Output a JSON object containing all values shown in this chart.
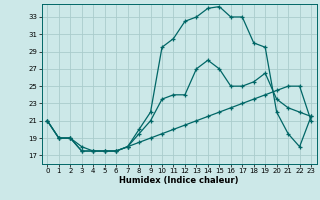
{
  "xlabel": "Humidex (Indice chaleur)",
  "ylabel": "",
  "bg_color": "#cce8e8",
  "grid_color": "#aacccc",
  "line_color": "#006666",
  "xlim": [
    -0.5,
    23.5
  ],
  "ylim": [
    16.0,
    34.5
  ],
  "xticks": [
    0,
    1,
    2,
    3,
    4,
    5,
    6,
    7,
    8,
    9,
    10,
    11,
    12,
    13,
    14,
    15,
    16,
    17,
    18,
    19,
    20,
    21,
    22,
    23
  ],
  "yticks": [
    17,
    19,
    21,
    23,
    25,
    27,
    29,
    31,
    33
  ],
  "line1_x": [
    0,
    1,
    2,
    3,
    4,
    5,
    6,
    7,
    8,
    9,
    10,
    11,
    12,
    13,
    14,
    15,
    16,
    17,
    18,
    19,
    20,
    21,
    22,
    23
  ],
  "line1_y": [
    21,
    19,
    19,
    18,
    17.5,
    17.5,
    17.5,
    18,
    18.5,
    19,
    19.5,
    20,
    20.5,
    21,
    21.5,
    22,
    22.5,
    23,
    23.5,
    24,
    24.5,
    25,
    25,
    21
  ],
  "line2_x": [
    0,
    1,
    2,
    3,
    4,
    5,
    6,
    7,
    8,
    9,
    10,
    11,
    12,
    13,
    14,
    15,
    16,
    17,
    18,
    19,
    20,
    21,
    22,
    23
  ],
  "line2_y": [
    21,
    19,
    19,
    17.5,
    17.5,
    17.5,
    17.5,
    18,
    19.5,
    21,
    23.5,
    24,
    24,
    27,
    28,
    27,
    25,
    25,
    25.5,
    26.5,
    23.5,
    22.5,
    22,
    21.5
  ],
  "line3_x": [
    0,
    1,
    2,
    3,
    4,
    5,
    6,
    7,
    8,
    9,
    10,
    11,
    12,
    13,
    14,
    15,
    16,
    17,
    18,
    19,
    20,
    21,
    22,
    23
  ],
  "line3_y": [
    21,
    19,
    19,
    17.5,
    17.5,
    17.5,
    17.5,
    18,
    20,
    22,
    29.5,
    30.5,
    32.5,
    33,
    34,
    34.2,
    33,
    33,
    30,
    29.5,
    22,
    19.5,
    18,
    21.5
  ]
}
